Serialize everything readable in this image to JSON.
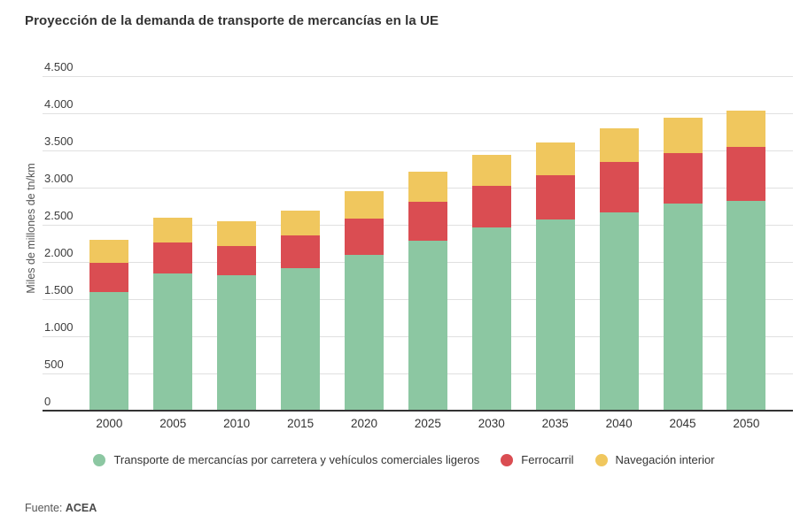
{
  "header": {
    "title": "Proyección de la demanda de transporte de mercancías en la UE"
  },
  "footer": {
    "source_label": "Fuente:",
    "source_value": "ACEA"
  },
  "colors": {
    "road": "#8cc7a2",
    "rail": "#da4d52",
    "inland": "#f0c75e",
    "gridline": "#e0e0e0",
    "axis": "#333333",
    "text": "#333333"
  },
  "chart_data": {
    "type": "bar",
    "stacked": true,
    "title": "Proyección de la demanda de transporte de mercancías en la UE",
    "xlabel": "",
    "ylabel": "Miles de millones de tn/km",
    "ylim": [
      0,
      4500
    ],
    "ytick_step": 500,
    "ytick_labels": [
      "0",
      "500",
      "1.000",
      "1.500",
      "2.000",
      "2.500",
      "3.000",
      "3.500",
      "4.000",
      "4.500"
    ],
    "grid": true,
    "legend_position": "bottom",
    "categories": [
      "2000",
      "2005",
      "2010",
      "2015",
      "2020",
      "2025",
      "2030",
      "2035",
      "2040",
      "2045",
      "2050"
    ],
    "series": [
      {
        "key": "road",
        "name": "Transporte de mercancías por carretera y vehículos comerciales ligeros",
        "color": "#8cc7a2",
        "values": [
          1600,
          1850,
          1820,
          1920,
          2100,
          2280,
          2470,
          2570,
          2670,
          2780,
          2820
        ]
      },
      {
        "key": "rail",
        "name": "Ferrocarril",
        "color": "#da4d52",
        "values": [
          390,
          410,
          390,
          440,
          480,
          530,
          550,
          600,
          680,
          690,
          730
        ]
      },
      {
        "key": "inland",
        "name": "Navegación interior",
        "color": "#f0c75e",
        "values": [
          310,
          330,
          340,
          330,
          370,
          400,
          420,
          440,
          450,
          470,
          480
        ]
      }
    ],
    "totals": [
      2300,
      2590,
      2550,
      2690,
      2950,
      3210,
      3440,
      3610,
      3800,
      3940,
      4030
    ]
  }
}
